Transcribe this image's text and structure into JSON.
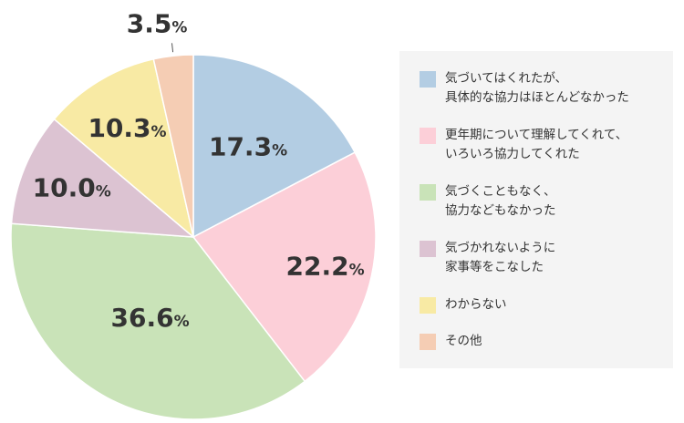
{
  "chart_data": {
    "type": "pie",
    "categories": [
      "気づいてはくれたが、\n具体的な協力はほとんどなかった",
      "更年期について理解してくれて、\nいろいろ協力してくれた",
      "気づくこともなく、\n協力などもなかった",
      "気づかれないように\n家事等をこなした",
      "わからない",
      "その他"
    ],
    "values": [
      17.3,
      22.2,
      36.6,
      10.0,
      10.3,
      3.5
    ],
    "value_labels": [
      "17.3",
      "22.2",
      "36.6",
      "10.0",
      "10.3",
      "3.5"
    ],
    "unit": "%",
    "colors": [
      "#b3cde3",
      "#fccfd8",
      "#c9e3b8",
      "#dcc3d2",
      "#f8eaa4",
      "#f5cdb4"
    ],
    "legend_placement": "right"
  }
}
